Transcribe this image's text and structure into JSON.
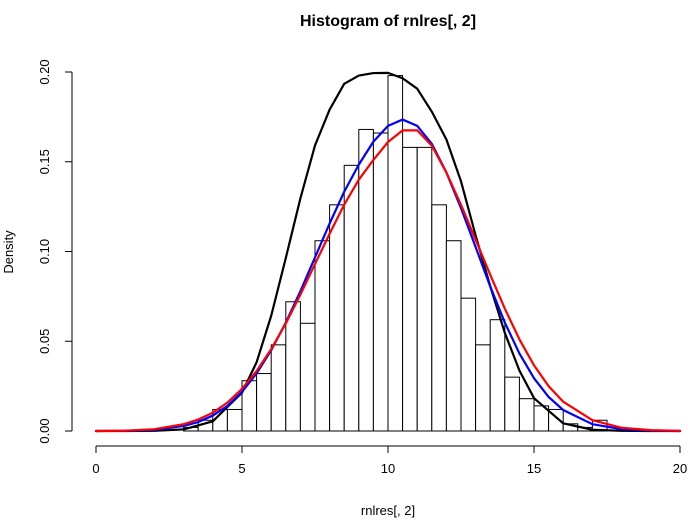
{
  "chart_data": {
    "type": "bar",
    "title": "Histogram of rnlres[, 2]",
    "xlabel": "rnlres[, 2]",
    "ylabel": "Density",
    "xlim": [
      0,
      20
    ],
    "ylim": [
      0,
      0.2
    ],
    "x_ticks": [
      "0",
      "5",
      "10",
      "15",
      "20"
    ],
    "y_ticks": [
      "0.00",
      "0.05",
      "0.10",
      "0.15",
      "0.20"
    ],
    "bin_width": 0.5,
    "bins": [
      {
        "x0": 3.0,
        "x1": 3.5,
        "density": 0.002
      },
      {
        "x0": 3.5,
        "x1": 4.0,
        "density": 0.006
      },
      {
        "x0": 4.0,
        "x1": 4.5,
        "density": 0.012
      },
      {
        "x0": 4.5,
        "x1": 5.0,
        "density": 0.012
      },
      {
        "x0": 5.0,
        "x1": 5.5,
        "density": 0.028
      },
      {
        "x0": 5.5,
        "x1": 6.0,
        "density": 0.032
      },
      {
        "x0": 6.0,
        "x1": 6.5,
        "density": 0.048
      },
      {
        "x0": 6.5,
        "x1": 7.0,
        "density": 0.072
      },
      {
        "x0": 7.0,
        "x1": 7.5,
        "density": 0.06
      },
      {
        "x0": 7.5,
        "x1": 8.0,
        "density": 0.106
      },
      {
        "x0": 8.0,
        "x1": 8.5,
        "density": 0.126
      },
      {
        "x0": 8.5,
        "x1": 9.0,
        "density": 0.148
      },
      {
        "x0": 9.0,
        "x1": 9.5,
        "density": 0.168
      },
      {
        "x0": 9.5,
        "x1": 10.0,
        "density": 0.166
      },
      {
        "x0": 10.0,
        "x1": 10.5,
        "density": 0.198
      },
      {
        "x0": 10.5,
        "x1": 11.0,
        "density": 0.158
      },
      {
        "x0": 11.0,
        "x1": 11.5,
        "density": 0.158
      },
      {
        "x0": 11.5,
        "x1": 12.0,
        "density": 0.126
      },
      {
        "x0": 12.0,
        "x1": 12.5,
        "density": 0.106
      },
      {
        "x0": 12.5,
        "x1": 13.0,
        "density": 0.074
      },
      {
        "x0": 13.0,
        "x1": 13.5,
        "density": 0.048
      },
      {
        "x0": 13.5,
        "x1": 14.0,
        "density": 0.062
      },
      {
        "x0": 14.0,
        "x1": 14.5,
        "density": 0.03
      },
      {
        "x0": 14.5,
        "x1": 15.0,
        "density": 0.018
      },
      {
        "x0": 15.0,
        "x1": 15.5,
        "density": 0.014
      },
      {
        "x0": 15.5,
        "x1": 16.0,
        "density": 0.012
      },
      {
        "x0": 16.0,
        "x1": 16.5,
        "density": 0.004
      },
      {
        "x0": 16.5,
        "x1": 17.0,
        "density": 0.002
      },
      {
        "x0": 17.0,
        "x1": 17.5,
        "density": 0.006
      }
    ],
    "curves": [
      {
        "color": "#000000",
        "x": [
          0,
          1,
          2,
          3,
          4,
          5,
          5.5,
          6,
          6.5,
          7,
          7.5,
          8,
          8.5,
          9,
          9.5,
          10,
          10.5,
          11,
          11.5,
          12,
          12.5,
          13,
          13.5,
          14,
          14.5,
          15,
          16,
          17,
          18,
          19,
          20
        ],
        "y": [
          0.0,
          0.0,
          0.0001,
          0.0009,
          0.0054,
          0.0214,
          0.0383,
          0.0642,
          0.0964,
          0.1296,
          0.1591,
          0.179,
          0.1934,
          0.198,
          0.1994,
          0.1995,
          0.1965,
          0.1907,
          0.1779,
          0.1624,
          0.1391,
          0.109,
          0.0807,
          0.0547,
          0.0337,
          0.0183,
          0.0043,
          0.0007,
          0.0001,
          0.0,
          0.0
        ]
      },
      {
        "color": "#0000ff",
        "x": [
          0,
          1,
          2,
          3,
          3.5,
          4,
          4.5,
          5,
          5.5,
          6,
          6.5,
          7,
          7.5,
          8,
          8.5,
          9,
          9.5,
          10,
          10.5,
          11,
          11.5,
          12,
          12.5,
          13,
          13.5,
          14,
          14.5,
          15,
          15.5,
          16,
          17,
          18,
          19,
          20
        ],
        "y": [
          0.0,
          0.0001,
          0.0006,
          0.0028,
          0.005,
          0.0086,
          0.014,
          0.0218,
          0.0321,
          0.045,
          0.0604,
          0.0779,
          0.0967,
          0.1156,
          0.1333,
          0.1484,
          0.1612,
          0.17,
          0.1735,
          0.17,
          0.16,
          0.144,
          0.1242,
          0.1025,
          0.0806,
          0.0604,
          0.0432,
          0.0294,
          0.019,
          0.0117,
          0.0038,
          0.001,
          0.0002,
          0.0
        ]
      },
      {
        "color": "#ff0000",
        "x": [
          0,
          1,
          2,
          3,
          3.5,
          4,
          4.5,
          5,
          5.5,
          6,
          6.5,
          7,
          7.5,
          8,
          8.5,
          9,
          9.5,
          10,
          10.5,
          11,
          11.5,
          12,
          12.5,
          13,
          13.5,
          14,
          14.5,
          15,
          15.5,
          16,
          17,
          18,
          19,
          20
        ],
        "y": [
          0.0,
          0.0002,
          0.001,
          0.0038,
          0.0064,
          0.0102,
          0.0158,
          0.0235,
          0.0334,
          0.0456,
          0.0599,
          0.076,
          0.093,
          0.1099,
          0.1261,
          0.14,
          0.151,
          0.161,
          0.1675,
          0.1675,
          0.159,
          0.144,
          0.126,
          0.1066,
          0.0871,
          0.0682,
          0.0511,
          0.0366,
          0.025,
          0.0163,
          0.006,
          0.0018,
          0.0005,
          0.0001
        ]
      }
    ],
    "grid": false,
    "legend": "none"
  }
}
